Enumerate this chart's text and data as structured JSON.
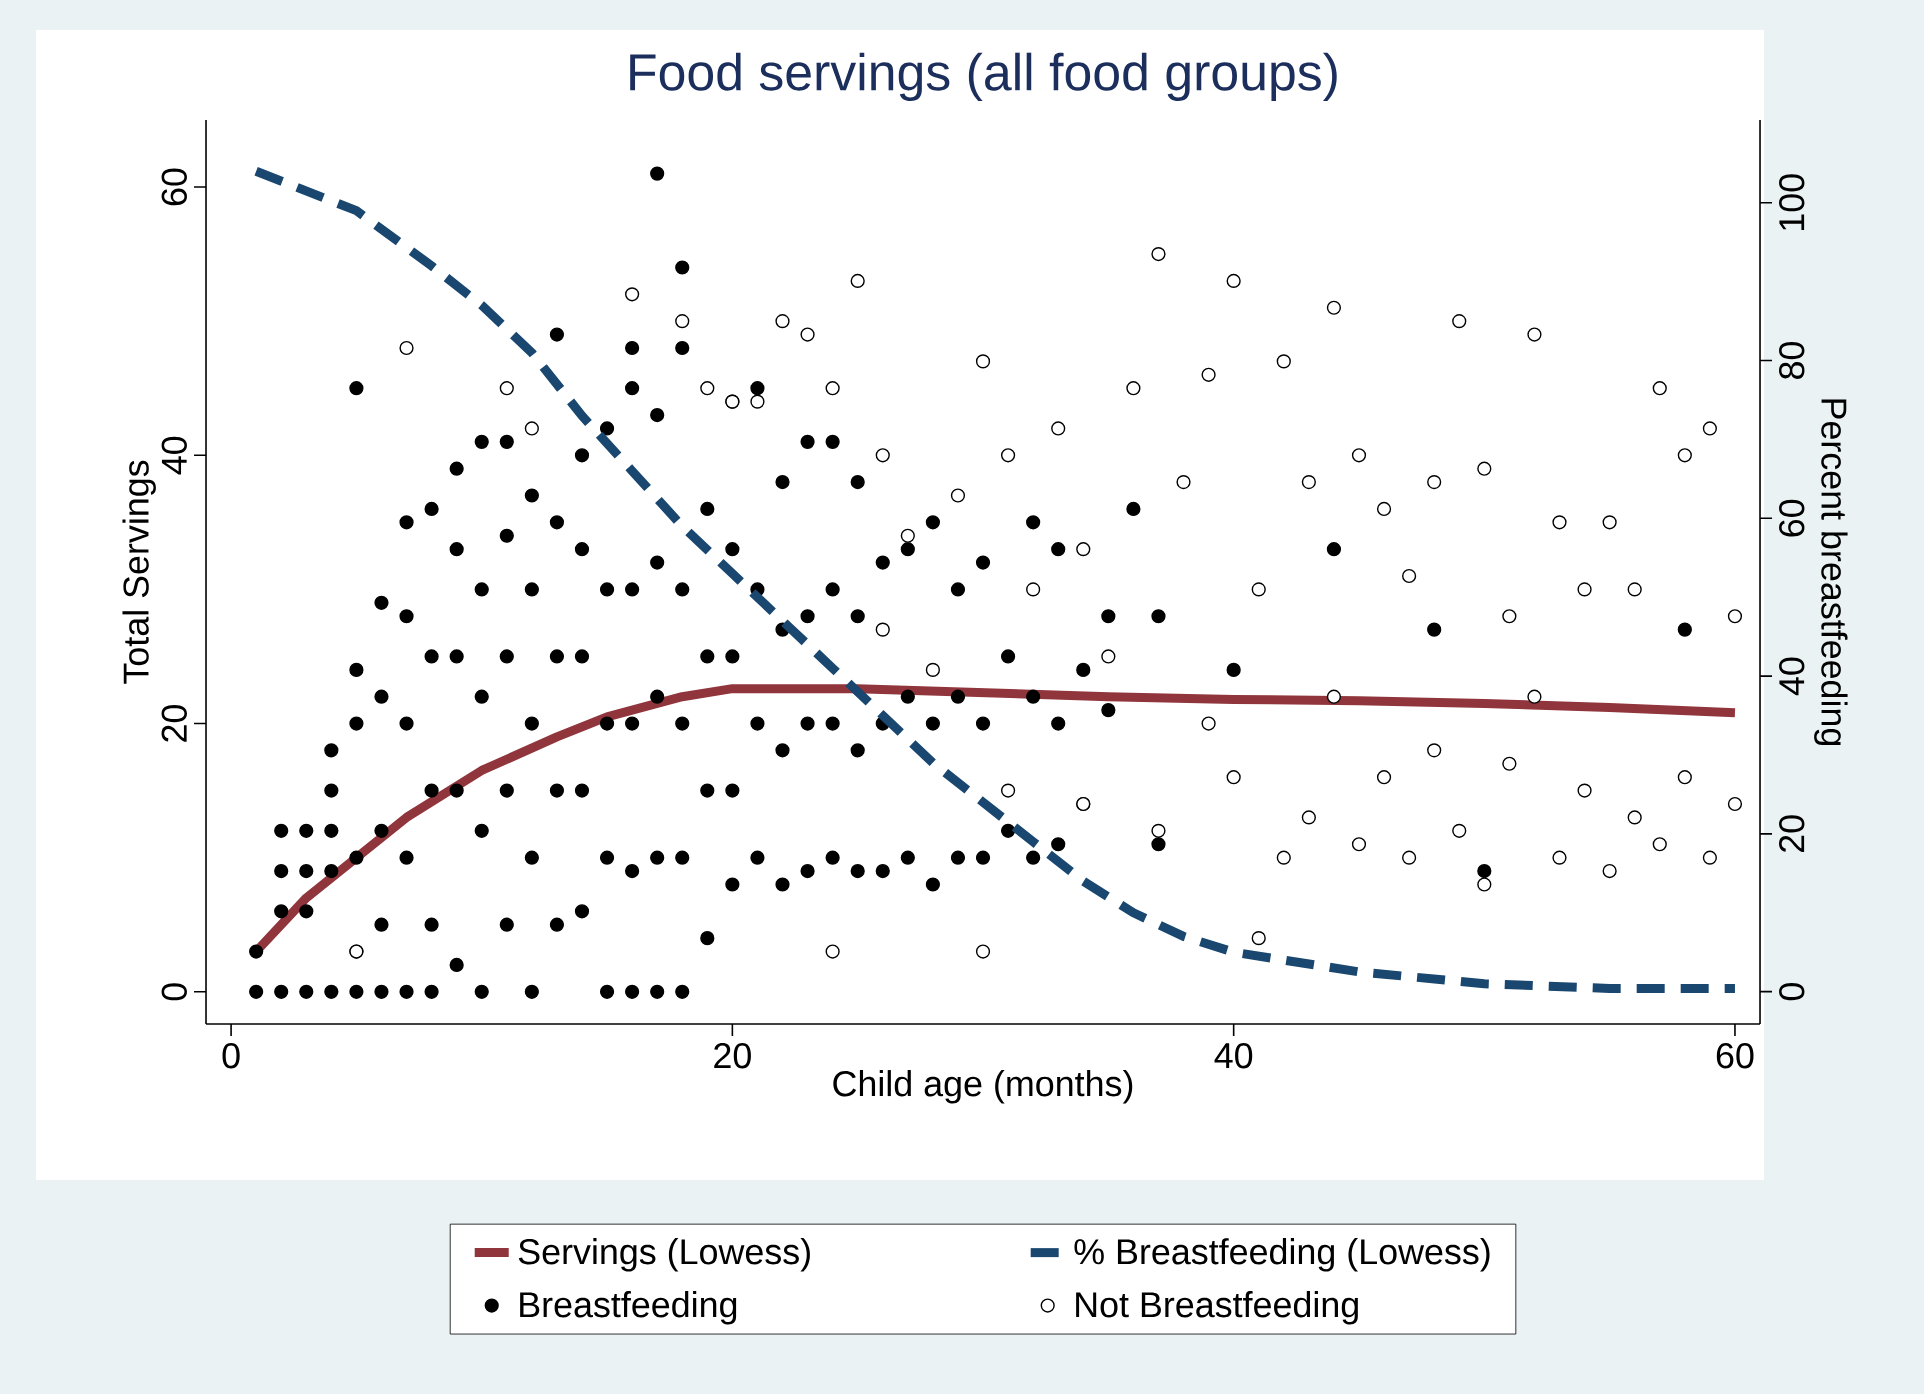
{
  "chart_data": {
    "type": "scatter",
    "title": "Food servings (all food groups)",
    "xlabel": "Child age (months)",
    "ylabel": "Total Servings",
    "y2label": "Percent breastfeeding",
    "xlim": [
      -1,
      61
    ],
    "xticks": [
      0,
      20,
      40,
      60
    ],
    "ylim": [
      -2.4,
      65
    ],
    "yticks": [
      0,
      20,
      40,
      60
    ],
    "y2lim": [
      -4.1,
      110.5
    ],
    "y2ticks": [
      0,
      20,
      40,
      60,
      80,
      100
    ],
    "grid": false,
    "legend": "bottom",
    "series": [
      {
        "name": "Servings (Lowess)",
        "type": "line",
        "marker": "none",
        "line_style": "solid",
        "color": "#90353b",
        "x": [
          1,
          3,
          5,
          7,
          10,
          13,
          15,
          18,
          20,
          25,
          30,
          35,
          40,
          45,
          50,
          55,
          60
        ],
        "values": [
          3,
          7,
          10,
          13,
          16.5,
          19,
          20.5,
          22,
          22.6,
          22.6,
          22.3,
          22,
          21.8,
          21.7,
          21.5,
          21.2,
          20.8
        ]
      },
      {
        "name": "% Breastfeeding (Lowess)",
        "type": "line",
        "axis": "y2",
        "marker": "none",
        "line_style": "dashed",
        "color": "#1a476f",
        "x": [
          1,
          5,
          8,
          10,
          12,
          14,
          16,
          18,
          20,
          22,
          24,
          26,
          28,
          30,
          32,
          34,
          36,
          38,
          40,
          42,
          45,
          50,
          55,
          60
        ],
        "values": [
          104,
          99,
          92,
          87,
          81,
          73,
          66,
          59,
          53,
          47,
          41,
          35,
          29,
          24,
          19,
          14,
          10,
          7,
          5,
          4,
          2.5,
          1,
          0.4,
          0.4
        ]
      },
      {
        "name": "Breastfeeding",
        "marker": "circle",
        "color": "#000000",
        "x": [
          1,
          1,
          2,
          2,
          2,
          2,
          3,
          3,
          3,
          3,
          4,
          4,
          4,
          4,
          4,
          5,
          5,
          5,
          5,
          5,
          5,
          6,
          6,
          6,
          6,
          6,
          7,
          7,
          7,
          7,
          7,
          8,
          8,
          8,
          8,
          8,
          9,
          9,
          9,
          9,
          9,
          10,
          10,
          10,
          10,
          10,
          11,
          11,
          11,
          11,
          11,
          12,
          12,
          12,
          12,
          12,
          13,
          13,
          13,
          13,
          13,
          14,
          14,
          14,
          14,
          14,
          15,
          15,
          15,
          15,
          15,
          16,
          16,
          16,
          16,
          16,
          16,
          17,
          17,
          17,
          17,
          17,
          17,
          18,
          18,
          18,
          18,
          18,
          18,
          19,
          19,
          19,
          19,
          20,
          20,
          20,
          20,
          20,
          21,
          21,
          21,
          21,
          22,
          22,
          22,
          22,
          23,
          23,
          23,
          23,
          24,
          24,
          24,
          24,
          25,
          25,
          25,
          25,
          26,
          26,
          26,
          27,
          27,
          27,
          28,
          28,
          28,
          29,
          29,
          29,
          30,
          30,
          30,
          31,
          31,
          32,
          32,
          32,
          33,
          33,
          33,
          34,
          34,
          35,
          35,
          36,
          37,
          37,
          40,
          44,
          48,
          50,
          58
        ],
        "values": [
          0,
          3,
          0,
          6,
          9,
          12,
          0,
          6,
          9,
          12,
          0,
          9,
          12,
          15,
          18,
          0,
          3,
          10,
          20,
          24,
          45,
          0,
          5,
          12,
          22,
          29,
          0,
          10,
          20,
          28,
          35,
          0,
          5,
          15,
          25,
          36,
          2,
          15,
          25,
          33,
          39,
          0,
          12,
          22,
          30,
          41,
          5,
          15,
          25,
          34,
          41,
          0,
          10,
          20,
          30,
          37,
          5,
          15,
          25,
          35,
          49,
          6,
          15,
          25,
          33,
          40,
          0,
          10,
          20,
          30,
          42,
          0,
          9,
          20,
          30,
          45,
          48,
          0,
          10,
          22,
          32,
          43,
          61,
          0,
          10,
          20,
          30,
          48,
          54,
          4,
          15,
          25,
          36,
          8,
          15,
          25,
          33,
          44,
          10,
          20,
          30,
          45,
          8,
          18,
          27,
          38,
          9,
          20,
          28,
          41,
          10,
          20,
          30,
          41,
          9,
          18,
          28,
          38,
          9,
          20,
          32,
          10,
          22,
          33,
          8,
          20,
          35,
          10,
          22,
          30,
          10,
          20,
          32,
          12,
          25,
          10,
          22,
          35,
          11,
          20,
          33,
          14,
          24,
          21,
          28,
          36,
          11,
          28,
          24,
          33,
          27,
          9,
          27
        ]
      },
      {
        "name": "Not Breastfeeding",
        "marker": "circle",
        "color": "#ffffff",
        "x": [
          5,
          7,
          11,
          12,
          16,
          18,
          19,
          20,
          21,
          22,
          23,
          24,
          24,
          25,
          26,
          26,
          27,
          28,
          29,
          30,
          30,
          31,
          31,
          32,
          33,
          34,
          34,
          35,
          36,
          37,
          37,
          38,
          39,
          39,
          40,
          40,
          41,
          41,
          42,
          42,
          43,
          43,
          44,
          44,
          45,
          45,
          46,
          46,
          47,
          47,
          48,
          48,
          49,
          49,
          50,
          50,
          51,
          51,
          52,
          52,
          53,
          53,
          54,
          54,
          55,
          55,
          56,
          56,
          57,
          57,
          58,
          58,
          59,
          59,
          60,
          60
        ],
        "values": [
          3,
          48,
          45,
          42,
          52,
          50,
          45,
          44,
          44,
          50,
          49,
          45,
          3,
          53,
          40,
          27,
          34,
          24,
          37,
          47,
          3,
          40,
          15,
          30,
          42,
          33,
          14,
          25,
          45,
          55,
          12,
          38,
          20,
          46,
          53,
          16,
          4,
          30,
          47,
          10,
          38,
          13,
          51,
          22,
          40,
          11,
          36,
          16,
          31,
          10,
          38,
          18,
          50,
          12,
          39,
          8,
          28,
          17,
          49,
          22,
          35,
          10,
          30,
          15,
          35,
          9,
          30,
          13,
          45,
          11,
          40,
          16,
          42,
          10,
          28,
          14
        ]
      }
    ]
  }
}
